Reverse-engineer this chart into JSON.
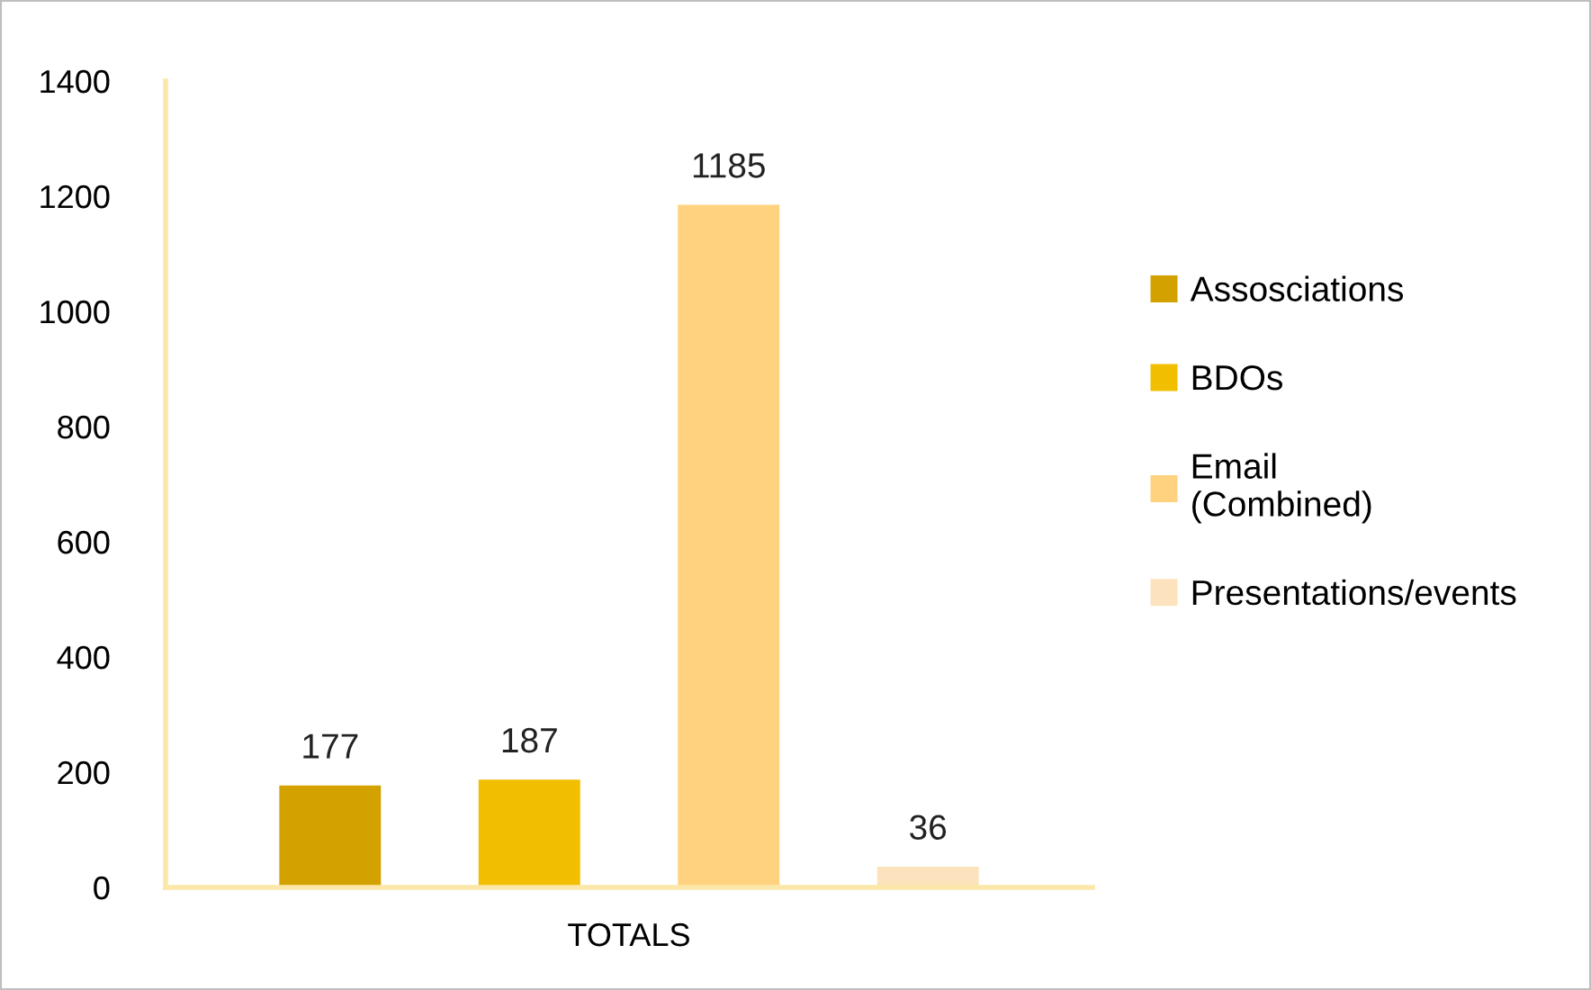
{
  "chart_data": {
    "type": "bar",
    "categories": [
      "TOTALS"
    ],
    "series": [
      {
        "name": "Assosciations",
        "color": "#d4a200",
        "values": [
          177
        ]
      },
      {
        "name": "BDOs",
        "color": "#f2bf00",
        "values": [
          187
        ]
      },
      {
        "name": "Email\n(Combined)",
        "color": "#ffd27f",
        "values": [
          1185
        ]
      },
      {
        "name": "Presentations/events",
        "color": "#fde3bd",
        "values": [
          36
        ]
      }
    ],
    "ylim": [
      0,
      1400
    ],
    "yticks": [
      0,
      200,
      400,
      600,
      800,
      1000,
      1200,
      1400
    ],
    "data_labels": true,
    "grid": false,
    "legend": "right"
  }
}
